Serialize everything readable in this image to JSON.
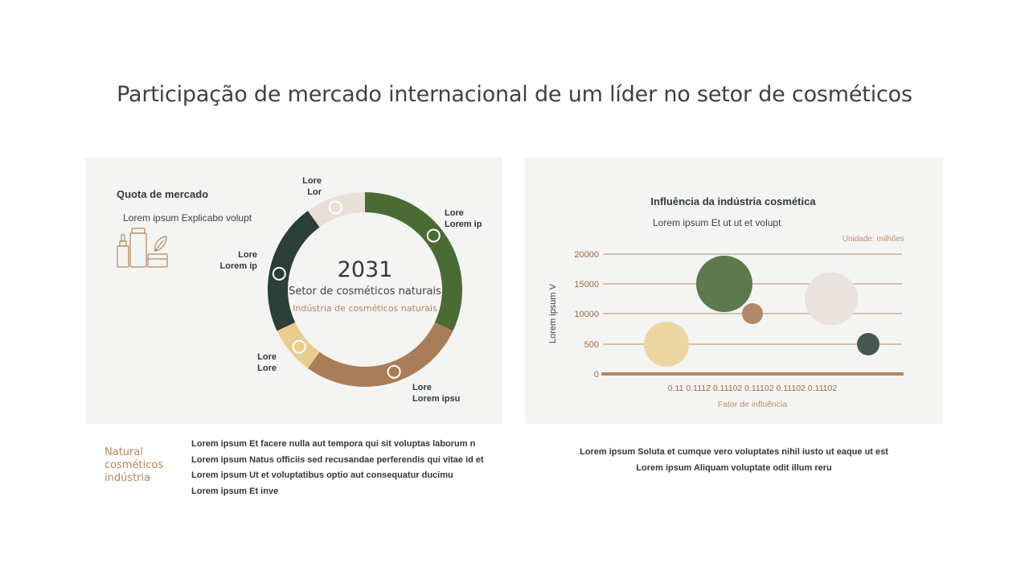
{
  "title": "Participação de mercado internacional de um líder no setor de cosméticos",
  "left_panel": {
    "title": "Quota de mercado",
    "subtitle": "Lorem ipsum Explicabo volupt",
    "icon": "cosmetics-bottles-leaf-icon",
    "center": {
      "year": "2031",
      "line1": "Setor de cosméticos naturais",
      "line2": "Indústria de cosméticos naturais"
    }
  },
  "chart_data": [
    {
      "type": "pie",
      "style": "donut",
      "segments": [
        {
          "label": "Lore Lorem ip",
          "label_lines": [
            "Lore",
            "Lorem ip"
          ],
          "value": 32,
          "color": "#4a6b33"
        },
        {
          "label": "Lore Lorem ipsu",
          "label_lines": [
            "Lore",
            "Lorem ipsu"
          ],
          "value": 28,
          "color": "#a97d58"
        },
        {
          "label": "Lore Lore",
          "label_lines": [
            "Lore",
            "Lore"
          ],
          "value": 8,
          "color": "#e9cd8e"
        },
        {
          "label": "Lore Lorem ip",
          "label_lines": [
            "Lore",
            "Lorem ip"
          ],
          "value": 22,
          "color": "#2b3e38"
        },
        {
          "label": "Lore Lor",
          "label_lines": [
            "Lore",
            "Lor"
          ],
          "value": 10,
          "color": "#e8dfd7"
        }
      ]
    },
    {
      "type": "scatter",
      "style": "bubble",
      "title": "Influência da indústria cosmética",
      "subtitle": "Lorem ipsum Et ut ut et volupt",
      "unit": "Unidade: milhões",
      "xlabel": "Fator de influência",
      "ylabel": "Lorem ipsum V",
      "x_tick_labels": [
        "0.11",
        "0.1112",
        "0.11102",
        "0.11102",
        "0.11102",
        "0.11102"
      ],
      "y_tick_labels": [
        "0",
        "500",
        "10000",
        "15000",
        "20000"
      ],
      "grid": true,
      "points": [
        {
          "x": "0.1112",
          "y": 500,
          "size": 28,
          "color": "#ecd6a4"
        },
        {
          "x": "0.11102",
          "y": 15000,
          "size": 35,
          "color": "#5e7a4c"
        },
        {
          "x": "0.11102",
          "y": 10000,
          "size": 13,
          "color": "#b08867"
        },
        {
          "x": "0.11102",
          "y": 12500,
          "size": 33,
          "color": "#e8e3df"
        },
        {
          "x": "0.11102",
          "y": 500,
          "size": 14,
          "color": "#45574f"
        }
      ]
    }
  ],
  "footer_left": {
    "label_lines": [
      "Natural",
      "cosméticos",
      "indústria"
    ],
    "lines": [
      "Lorem ipsum Et facere nulla aut tempora qui sit voluptas laborum n",
      "Lorem ipsum Natus officiis sed recusandae perferendis qui vitae id et",
      "Lorem ipsum Ut et voluptatibus optio aut consequatur ducimu",
      "Lorem ipsum Et inve"
    ]
  },
  "footer_right": {
    "lines": [
      "Lorem ipsum Soluta et cumque vero voluptates nihil iusto ut eaque ut est",
      "Lorem ipsum Aliquam voluptate odit illum reru"
    ]
  },
  "colors": {
    "accent_brown": "#b4865c",
    "dark_green": "#2b3e38",
    "green": "#4a6b33",
    "panel_bg": "#f4f4f3"
  }
}
